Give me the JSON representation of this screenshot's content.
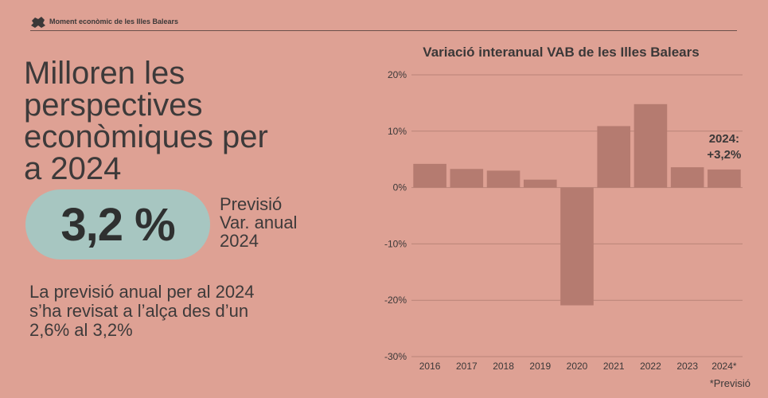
{
  "header": {
    "brand": "Moment econòmic de les Illes Balears"
  },
  "headline": [
    "Milloren les",
    "perspectives",
    "econòmiques per",
    "a 2024"
  ],
  "highlight": {
    "value": "3,2 %",
    "label": [
      "Previsió",
      "Var. anual",
      "2024"
    ]
  },
  "note": [
    "La previsió anual per al 2024",
    "s’ha revisat a l’alça des d’un",
    "2,6% al 3,2%"
  ],
  "footnote": "*Previsió",
  "colors": {
    "background": "#dea194",
    "bar": "#b57b70",
    "pill": "#a7c6c1",
    "text": "#3b3838"
  },
  "chart_data": {
    "type": "bar",
    "title": "Variació interanual VAB de les Illes Balears",
    "categories": [
      "2016",
      "2017",
      "2018",
      "2019",
      "2020",
      "2021",
      "2022",
      "2023",
      "2024*"
    ],
    "values": [
      4.2,
      3.3,
      3.0,
      1.4,
      -20.9,
      10.9,
      14.8,
      3.6,
      3.2
    ],
    "ylim": [
      -30,
      20
    ],
    "yticks": [
      20,
      10,
      0,
      -10,
      -20,
      -30
    ],
    "ytick_labels": [
      "20%",
      "10%",
      "0%",
      "-10%",
      "-20%",
      "-30%"
    ],
    "grid": true,
    "annotation": [
      "2024:",
      "+3,2%"
    ]
  }
}
